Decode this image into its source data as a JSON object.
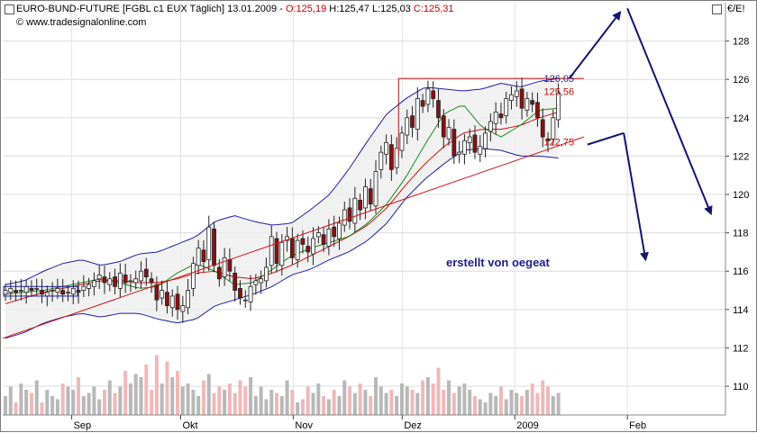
{
  "header": {
    "instrument": "EURO-BUND-FUTURE [FGBL c1 EUX  Täglich] 13.01.2009 -",
    "open": "O:125,19",
    "high": "H:125,47",
    "low": "L:125,03",
    "close": "C:125,31",
    "source": "© www.tradesignalonline.com"
  },
  "currency_label": "€/E!",
  "watermark": "erstellt von oegeat",
  "colors": {
    "up_candle": "#ffffff",
    "down_candle": "#8b1010",
    "bollinger": "#1f1fa0",
    "sma_green": "#1a8a1a",
    "sma_red": "#d01010",
    "forecast_arrow": "#141470",
    "volume": "#b8b8b8",
    "volume_down": "#f0b8b8"
  },
  "chart_data": {
    "type": "candlestick",
    "title": "EURO-BUND-FUTURE",
    "ylim": [
      108.5,
      130
    ],
    "y_ticks": [
      110,
      112,
      114,
      116,
      118,
      120,
      122,
      124,
      126,
      128
    ],
    "y_tick_labels": [
      "110",
      "112",
      "114",
      "116",
      "118",
      "120",
      "122",
      "124",
      "126",
      "128"
    ],
    "x_tick_labels": [
      "Sep",
      "Okt",
      "Nov",
      "Dez",
      "2009",
      "Feb"
    ],
    "x_tick_dates": [
      "2008-09-01",
      "2008-10-01",
      "2008-11-01",
      "2008-12-01",
      "2009-01-01",
      "2009-02-01"
    ],
    "x_range": [
      "2008-08-13",
      "2009-02-28"
    ],
    "grid": true,
    "closes": [
      115.0,
      115.1,
      114.9,
      115.0,
      115.2,
      115.0,
      115.1,
      114.8,
      114.9,
      115.0,
      115.1,
      114.8,
      114.9,
      115.1,
      114.9,
      115.2,
      115.3,
      115.5,
      115.8,
      115.4,
      115.6,
      115.2,
      115.9,
      115.4,
      115.5,
      115.6,
      116.0,
      115.7,
      115.4,
      114.5,
      115.0,
      114.2,
      114.7,
      114.0,
      114.2,
      115.0,
      116.4,
      117.2,
      116.5,
      118.3,
      116.3,
      115.6,
      116.7,
      116.0,
      115.0,
      114.6,
      114.5,
      115.2,
      115.5,
      115.6,
      116.2,
      117.8,
      116.4,
      117.5,
      117.8,
      116.7,
      117.6,
      117.4,
      117.0,
      117.7,
      118.0,
      117.4,
      118.2,
      117.8,
      118.5,
      119.2,
      118.6,
      119.8,
      119.2,
      120.4,
      119.5,
      121.2,
      122.2,
      122.7,
      121.3,
      122.4,
      123.2,
      124.0,
      123.5,
      125.0,
      124.6,
      125.5,
      125.0,
      124.0,
      123.0,
      123.5,
      122.0,
      122.2,
      122.8,
      123.0,
      122.2,
      122.5,
      123.2,
      123.8,
      124.3,
      124.0,
      125.0,
      125.2,
      125.4,
      124.5,
      125.0,
      124.7,
      124.0,
      123.0,
      122.8,
      124.0,
      125.3
    ],
    "bb_upper": [
      115.3,
      115.5,
      116.0,
      116.4,
      116.6,
      116.3,
      116.5,
      116.9,
      117.0,
      117.4,
      117.8,
      118.6,
      118.9,
      118.6,
      118.4,
      118.5,
      119.2,
      120.0,
      121.3,
      122.8,
      124.2,
      125.0,
      125.6,
      125.5,
      125.4,
      125.5,
      125.8,
      125.6,
      125.9,
      126.05
    ],
    "bb_lower": [
      112.5,
      112.8,
      113.3,
      113.6,
      113.8,
      113.6,
      113.8,
      113.8,
      113.5,
      113.3,
      113.5,
      114.2,
      114.5,
      114.8,
      115.2,
      115.8,
      116.1,
      116.6,
      117.0,
      117.6,
      118.5,
      119.8,
      120.8,
      121.6,
      122.3,
      122.4,
      122.3,
      122.0,
      122.0,
      121.9
    ],
    "sma_green": [
      114.8,
      114.9,
      115.0,
      115.2,
      115.4,
      115.6,
      115.4,
      115.1,
      115.2,
      115.9,
      116.4,
      116.0,
      115.3,
      115.4,
      116.1,
      116.8,
      117.2,
      117.5,
      117.8,
      118.5,
      119.5,
      120.9,
      122.6,
      124.2,
      124.7,
      123.5,
      123.0,
      123.6,
      124.4,
      124.5
    ],
    "sma_red": [
      114.3,
      114.6,
      114.9,
      115.1,
      115.3,
      115.5,
      115.5,
      115.4,
      115.4,
      115.6,
      115.9,
      116.0,
      115.7,
      115.6,
      115.9,
      116.3,
      116.8,
      117.3,
      117.8,
      118.4,
      119.3,
      120.5,
      121.6,
      122.5,
      123.2,
      123.4,
      123.4,
      123.6,
      124.0,
      124.3
    ],
    "volume_relative": [
      0.3,
      0.45,
      0.2,
      0.5,
      0.4,
      0.35,
      0.55,
      0.2,
      0.4,
      0.3,
      0.25,
      0.5,
      0.45,
      0.4,
      0.6,
      0.3,
      0.35,
      0.45,
      0.25,
      0.4,
      0.55,
      0.35,
      0.45,
      0.7,
      0.5,
      0.65,
      0.6,
      0.8,
      0.4,
      0.95,
      0.5,
      0.85,
      0.6,
      0.7,
      0.45,
      0.5,
      0.4,
      0.3,
      0.55,
      0.65,
      0.35,
      0.45,
      0.4,
      0.5,
      0.35,
      0.55,
      0.45,
      0.6,
      0.3,
      0.45,
      0.25,
      0.4,
      0.35,
      0.3,
      0.55,
      0.4,
      0.2,
      0.25,
      0.45,
      0.35,
      0.5,
      0.3,
      0.25,
      0.4,
      0.3,
      0.55,
      0.45,
      0.35,
      0.5,
      0.4,
      0.3,
      0.6,
      0.45,
      0.35,
      0.4,
      0.3,
      0.5,
      0.45,
      0.4,
      0.35,
      0.55,
      0.6,
      0.5,
      0.75,
      0.4,
      0.55,
      0.35,
      0.45,
      0.5,
      0.4,
      0.3,
      0.25,
      0.2,
      0.35,
      0.3,
      0.45,
      0.25,
      0.4,
      0.35,
      0.3,
      0.4,
      0.5,
      0.35,
      0.55,
      0.45,
      0.3,
      0.35
    ],
    "resistance_level": 126.05,
    "support_level_label": "125,56",
    "trendline_label": "122,75",
    "resistance_label": "126,05",
    "resistance_range": [
      "2008-11-30",
      "2009-01-20"
    ],
    "trendline": {
      "start": [
        "2008-08-13",
        112.5
      ],
      "end": [
        "2009-01-20",
        123.0
      ]
    },
    "forecast_arrows": [
      {
        "from": [
          "2009-01-16",
          126.05
        ],
        "to": [
          "2009-01-30",
          129.5
        ]
      },
      {
        "from": [
          "2009-02-01",
          129.7
        ],
        "to": [
          "2009-02-24",
          119.0
        ]
      },
      {
        "from": [
          "2009-01-21",
          122.6
        ],
        "to": [
          "2009-01-31",
          123.2
        ]
      },
      {
        "from": [
          "2009-01-31",
          123.2
        ],
        "to": [
          "2009-02-06",
          116.6
        ]
      }
    ]
  }
}
